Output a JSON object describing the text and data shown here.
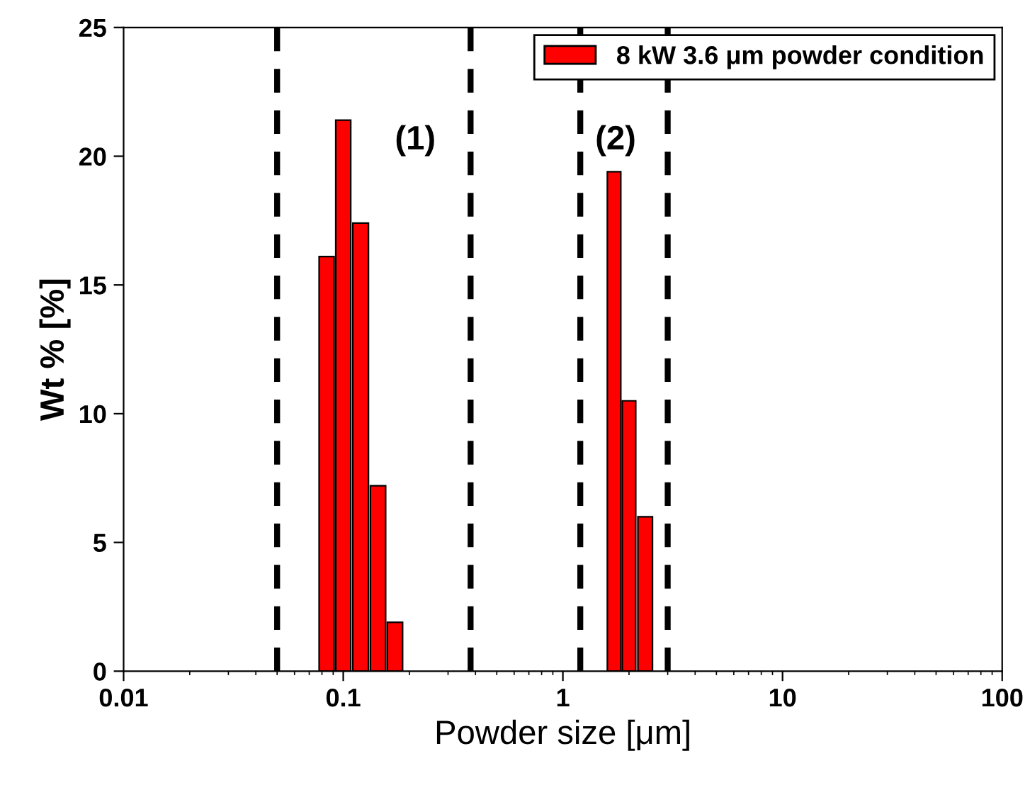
{
  "chart_data": {
    "type": "bar",
    "xlabel": "Powder size [μm]",
    "ylabel": "Wt % [%]",
    "x": [
      0.084,
      0.1,
      0.12,
      0.144,
      0.172,
      1.71,
      2.0,
      2.37
    ],
    "series": [
      {
        "name": "8 kW 3.6 μm powder condition",
        "color": "#ff0000",
        "values": [
          16.1,
          21.4,
          17.4,
          7.2,
          1.9,
          19.4,
          10.5,
          6.0
        ]
      }
    ],
    "log": "x",
    "xlim": [
      0.01,
      100
    ],
    "xticks": [
      0.01,
      0.1,
      1,
      10,
      100
    ],
    "ylim": [
      0,
      25
    ],
    "yticks": [
      0,
      5,
      10,
      15,
      20,
      25
    ],
    "ref_lines": [
      {
        "axis": "x",
        "value": 0.05,
        "color": "#000000",
        "line_style": "dashed"
      },
      {
        "axis": "x",
        "value": 0.38,
        "color": "#000000",
        "line_style": "dashed"
      },
      {
        "axis": "x",
        "value": 1.2,
        "color": "#000000",
        "line_style": "dashed"
      },
      {
        "axis": "x",
        "value": 3,
        "color": "#000000",
        "line_style": "dashed"
      }
    ],
    "annotations": [
      "(1)",
      "(2)"
    ],
    "legend": "top right",
    "grid": false
  }
}
